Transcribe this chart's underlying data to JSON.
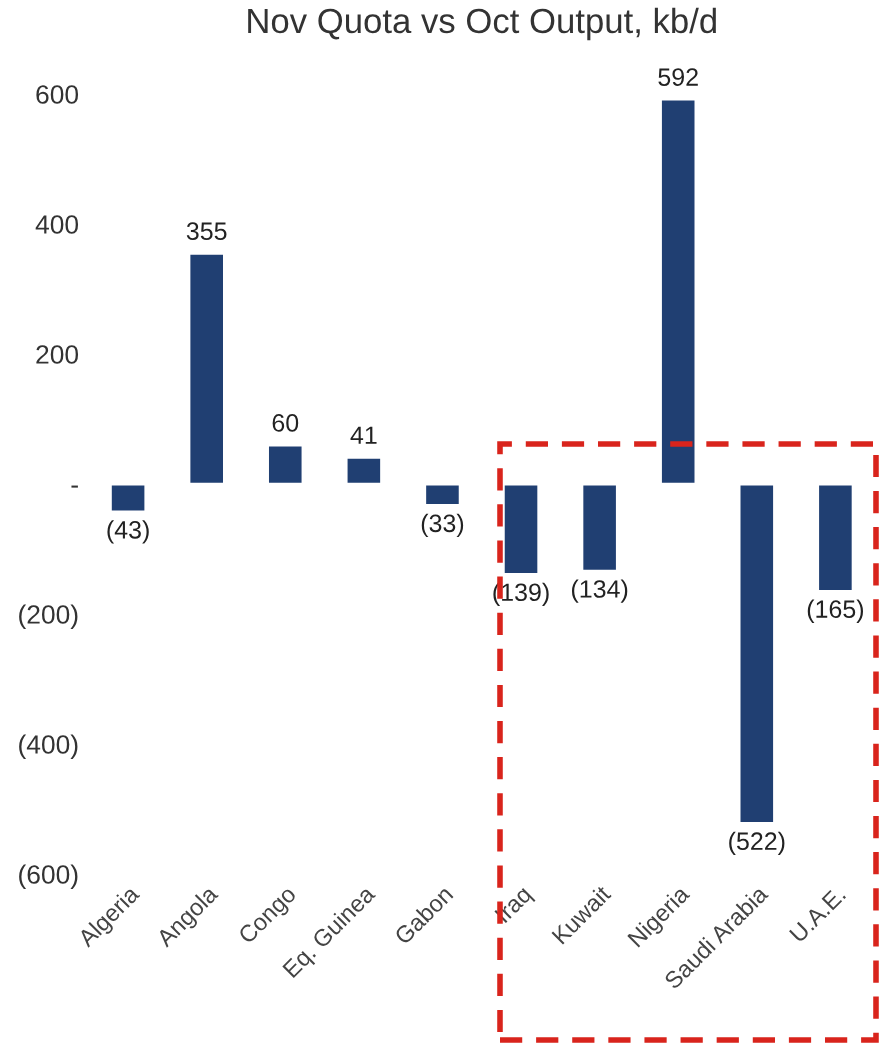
{
  "chart_data": {
    "type": "bar",
    "title": "Nov Quota vs Oct Output, kb/d",
    "categories": [
      "Algeria",
      "Angola",
      "Congo",
      "Eq. Guinea",
      "Gabon",
      "Iraq",
      "Kuwait",
      "Nigeria",
      "Saudi Arabia",
      "U.A.E."
    ],
    "values": [
      -43,
      355,
      60,
      41,
      -33,
      -139,
      -134,
      592,
      -522,
      -165
    ],
    "value_labels": [
      "(43)",
      "355",
      "60",
      "41",
      "(33)",
      "(139)",
      "(134)",
      "592",
      "(522)",
      "(165)"
    ],
    "color": "#203f72",
    "ylim": [
      -600,
      600
    ],
    "yticks": [
      600,
      400,
      200,
      {
        "value": 0,
        "label": "-"
      },
      {
        "value": -200,
        "label": "(200)"
      },
      {
        "value": -400,
        "label": "(400)"
      },
      {
        "value": -600,
        "label": "(600)"
      }
    ],
    "grid": false
  }
}
